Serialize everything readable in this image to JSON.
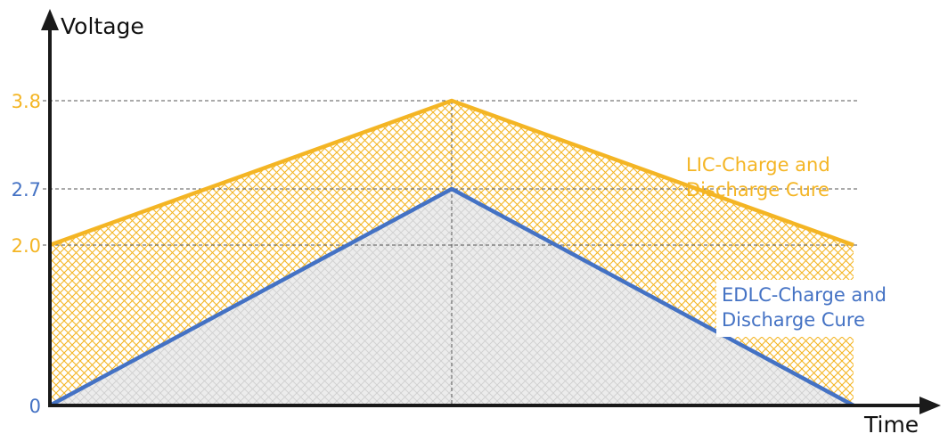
{
  "chart_data": {
    "type": "line",
    "xlabel": "Time",
    "ylabel": "Voltage",
    "x": [
      0,
      1,
      2
    ],
    "ylim": [
      0,
      3.8
    ],
    "y_ticks": [
      {
        "value": 0,
        "label": "0",
        "color": "#4472c4"
      },
      {
        "value": 2.0,
        "label": "2.0",
        "color": "#f4b524"
      },
      {
        "value": 2.7,
        "label": "2.7",
        "color": "#4472c4"
      },
      {
        "value": 3.8,
        "label": "3.8",
        "color": "#f4b524"
      }
    ],
    "series": [
      {
        "name": "LIC-Charge and Discharge Cure",
        "label_lines": [
          "LIC-Charge and",
          "Discharge Cure"
        ],
        "values": [
          2.0,
          3.8,
          2.0
        ],
        "color": "#f4b524",
        "fill": "crosshatch"
      },
      {
        "name": "EDLC-Charge and Discharge Cure",
        "label_lines": [
          "EDLC-Charge and",
          "Discharge Cure"
        ],
        "values": [
          0,
          2.7,
          0
        ],
        "color": "#4472c4",
        "fill": "#ebebeb"
      }
    ],
    "grid": "dashed reference lines at tick values and at peak time",
    "legend": "inline-labels"
  }
}
